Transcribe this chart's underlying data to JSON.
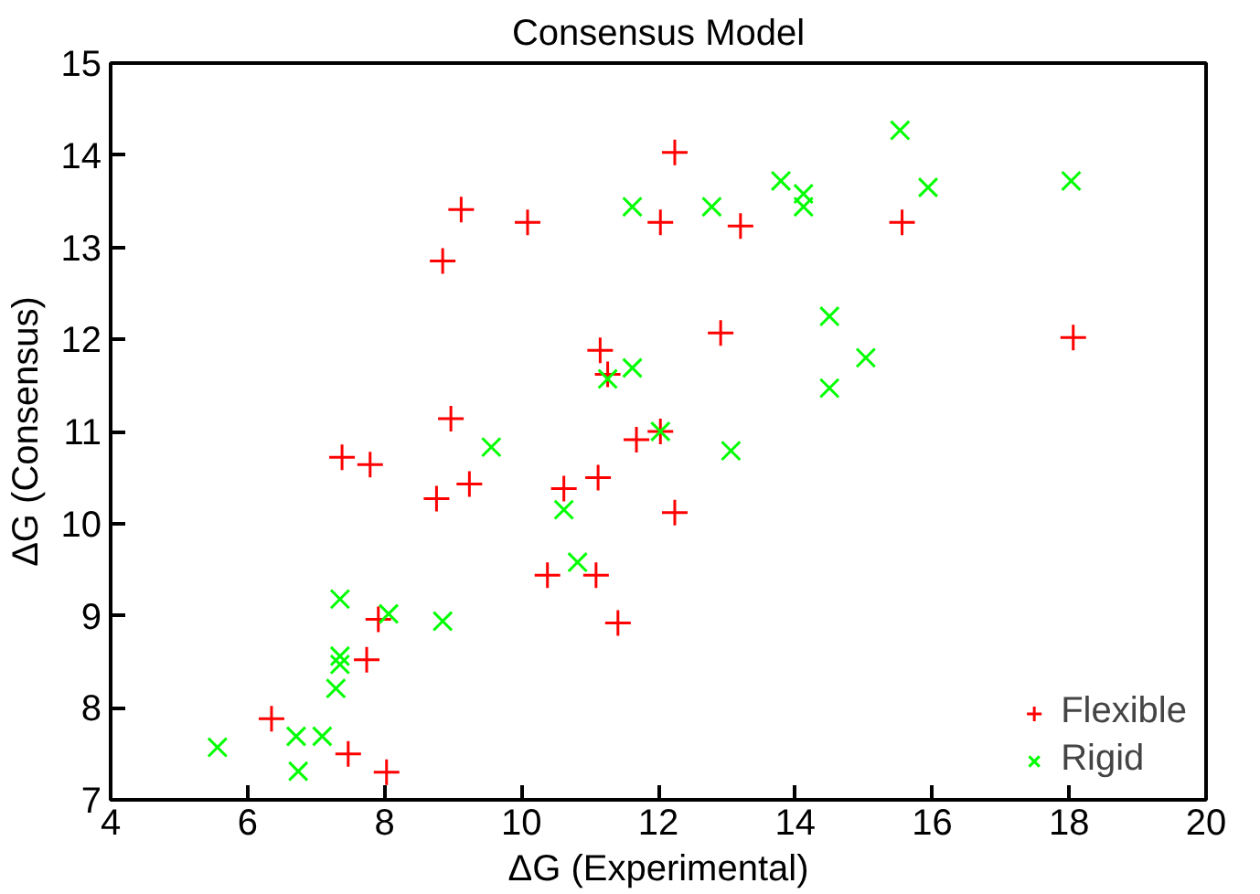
{
  "chart_data": {
    "type": "scatter",
    "title": "Consensus Model",
    "xlabel": "ΔG (Experimental)",
    "ylabel": "ΔG (Consensus)",
    "xlim": [
      4,
      20
    ],
    "xticks": [
      4,
      6,
      8,
      10,
      12,
      14,
      16,
      18,
      20
    ],
    "ylim": [
      7,
      15
    ],
    "yticks": [
      7,
      8,
      9,
      10,
      11,
      12,
      13,
      14,
      15
    ],
    "grid": false,
    "legend": "bottom right",
    "series": [
      {
        "name": "Flexible",
        "color": "#ff0000",
        "marker": "cross",
        "x": [
          12.24,
          9.12,
          10.09,
          12.03,
          13.2,
          15.56,
          12.91,
          18.06,
          8.85,
          11.15,
          11.26,
          8.97,
          7.38,
          7.79,
          8.76,
          9.24,
          10.62,
          11.12,
          11.68,
          12.03,
          12.24,
          10.38,
          11.09,
          11.41,
          7.91,
          7.74,
          6.35,
          7.47,
          8.03
        ],
        "values": [
          14.03,
          13.41,
          13.27,
          13.27,
          13.23,
          13.27,
          12.07,
          12.02,
          12.85,
          11.88,
          11.62,
          11.14,
          10.72,
          10.64,
          10.27,
          10.43,
          10.38,
          10.5,
          10.91,
          11.0,
          10.12,
          9.44,
          9.44,
          8.92,
          8.96,
          8.52,
          7.88,
          7.5,
          7.3
        ]
      },
      {
        "name": "Rigid",
        "color": "#00ff00",
        "marker": "x",
        "x": [
          15.53,
          13.79,
          14.12,
          14.12,
          15.94,
          18.03,
          12.78,
          11.62,
          14.5,
          15.03,
          14.5,
          11.62,
          11.26,
          9.56,
          10.62,
          10.82,
          8.85,
          8.06,
          7.35,
          7.35,
          7.35,
          7.29,
          5.56,
          6.71,
          7.09,
          6.74,
          12.03,
          13.06
        ],
        "values": [
          14.27,
          13.72,
          13.58,
          13.44,
          13.65,
          13.72,
          13.44,
          13.44,
          12.25,
          11.8,
          11.47,
          11.69,
          11.57,
          10.83,
          10.15,
          9.58,
          8.94,
          9.02,
          9.18,
          8.56,
          8.47,
          8.21,
          7.57,
          7.69,
          7.69,
          7.31,
          11.0,
          10.79
        ]
      }
    ]
  }
}
